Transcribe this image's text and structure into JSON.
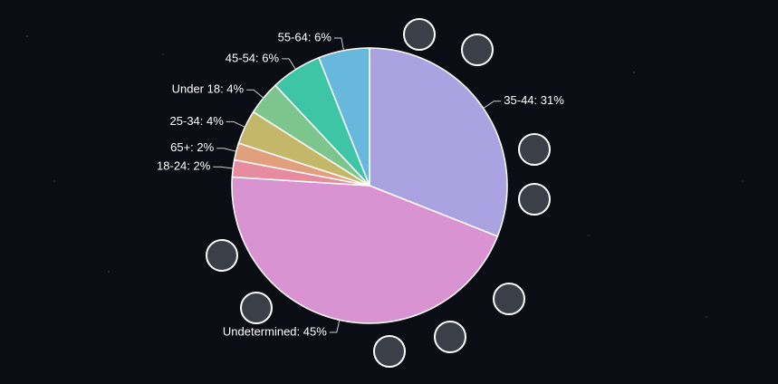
{
  "chart_data": {
    "type": "pie",
    "categories": [
      "35-44",
      "Undetermined",
      "18-24",
      "65+",
      "25-34",
      "Under 18",
      "45-54",
      "55-64"
    ],
    "values": [
      31,
      45,
      2,
      2,
      4,
      4,
      6,
      6
    ],
    "labels": [
      "35-44: 31%",
      "Undetermined: 45%",
      "18-24: 2%",
      "65+: 2%",
      "25-34: 4%",
      "Under 18: 4%",
      "45-54: 6%",
      "55-64: 6%"
    ],
    "colors": [
      "#aba3e1",
      "#d993d0",
      "#e68c9e",
      "#e0a07e",
      "#c4b76a",
      "#7cc58c",
      "#3ec5a6",
      "#67b8dc"
    ]
  }
}
